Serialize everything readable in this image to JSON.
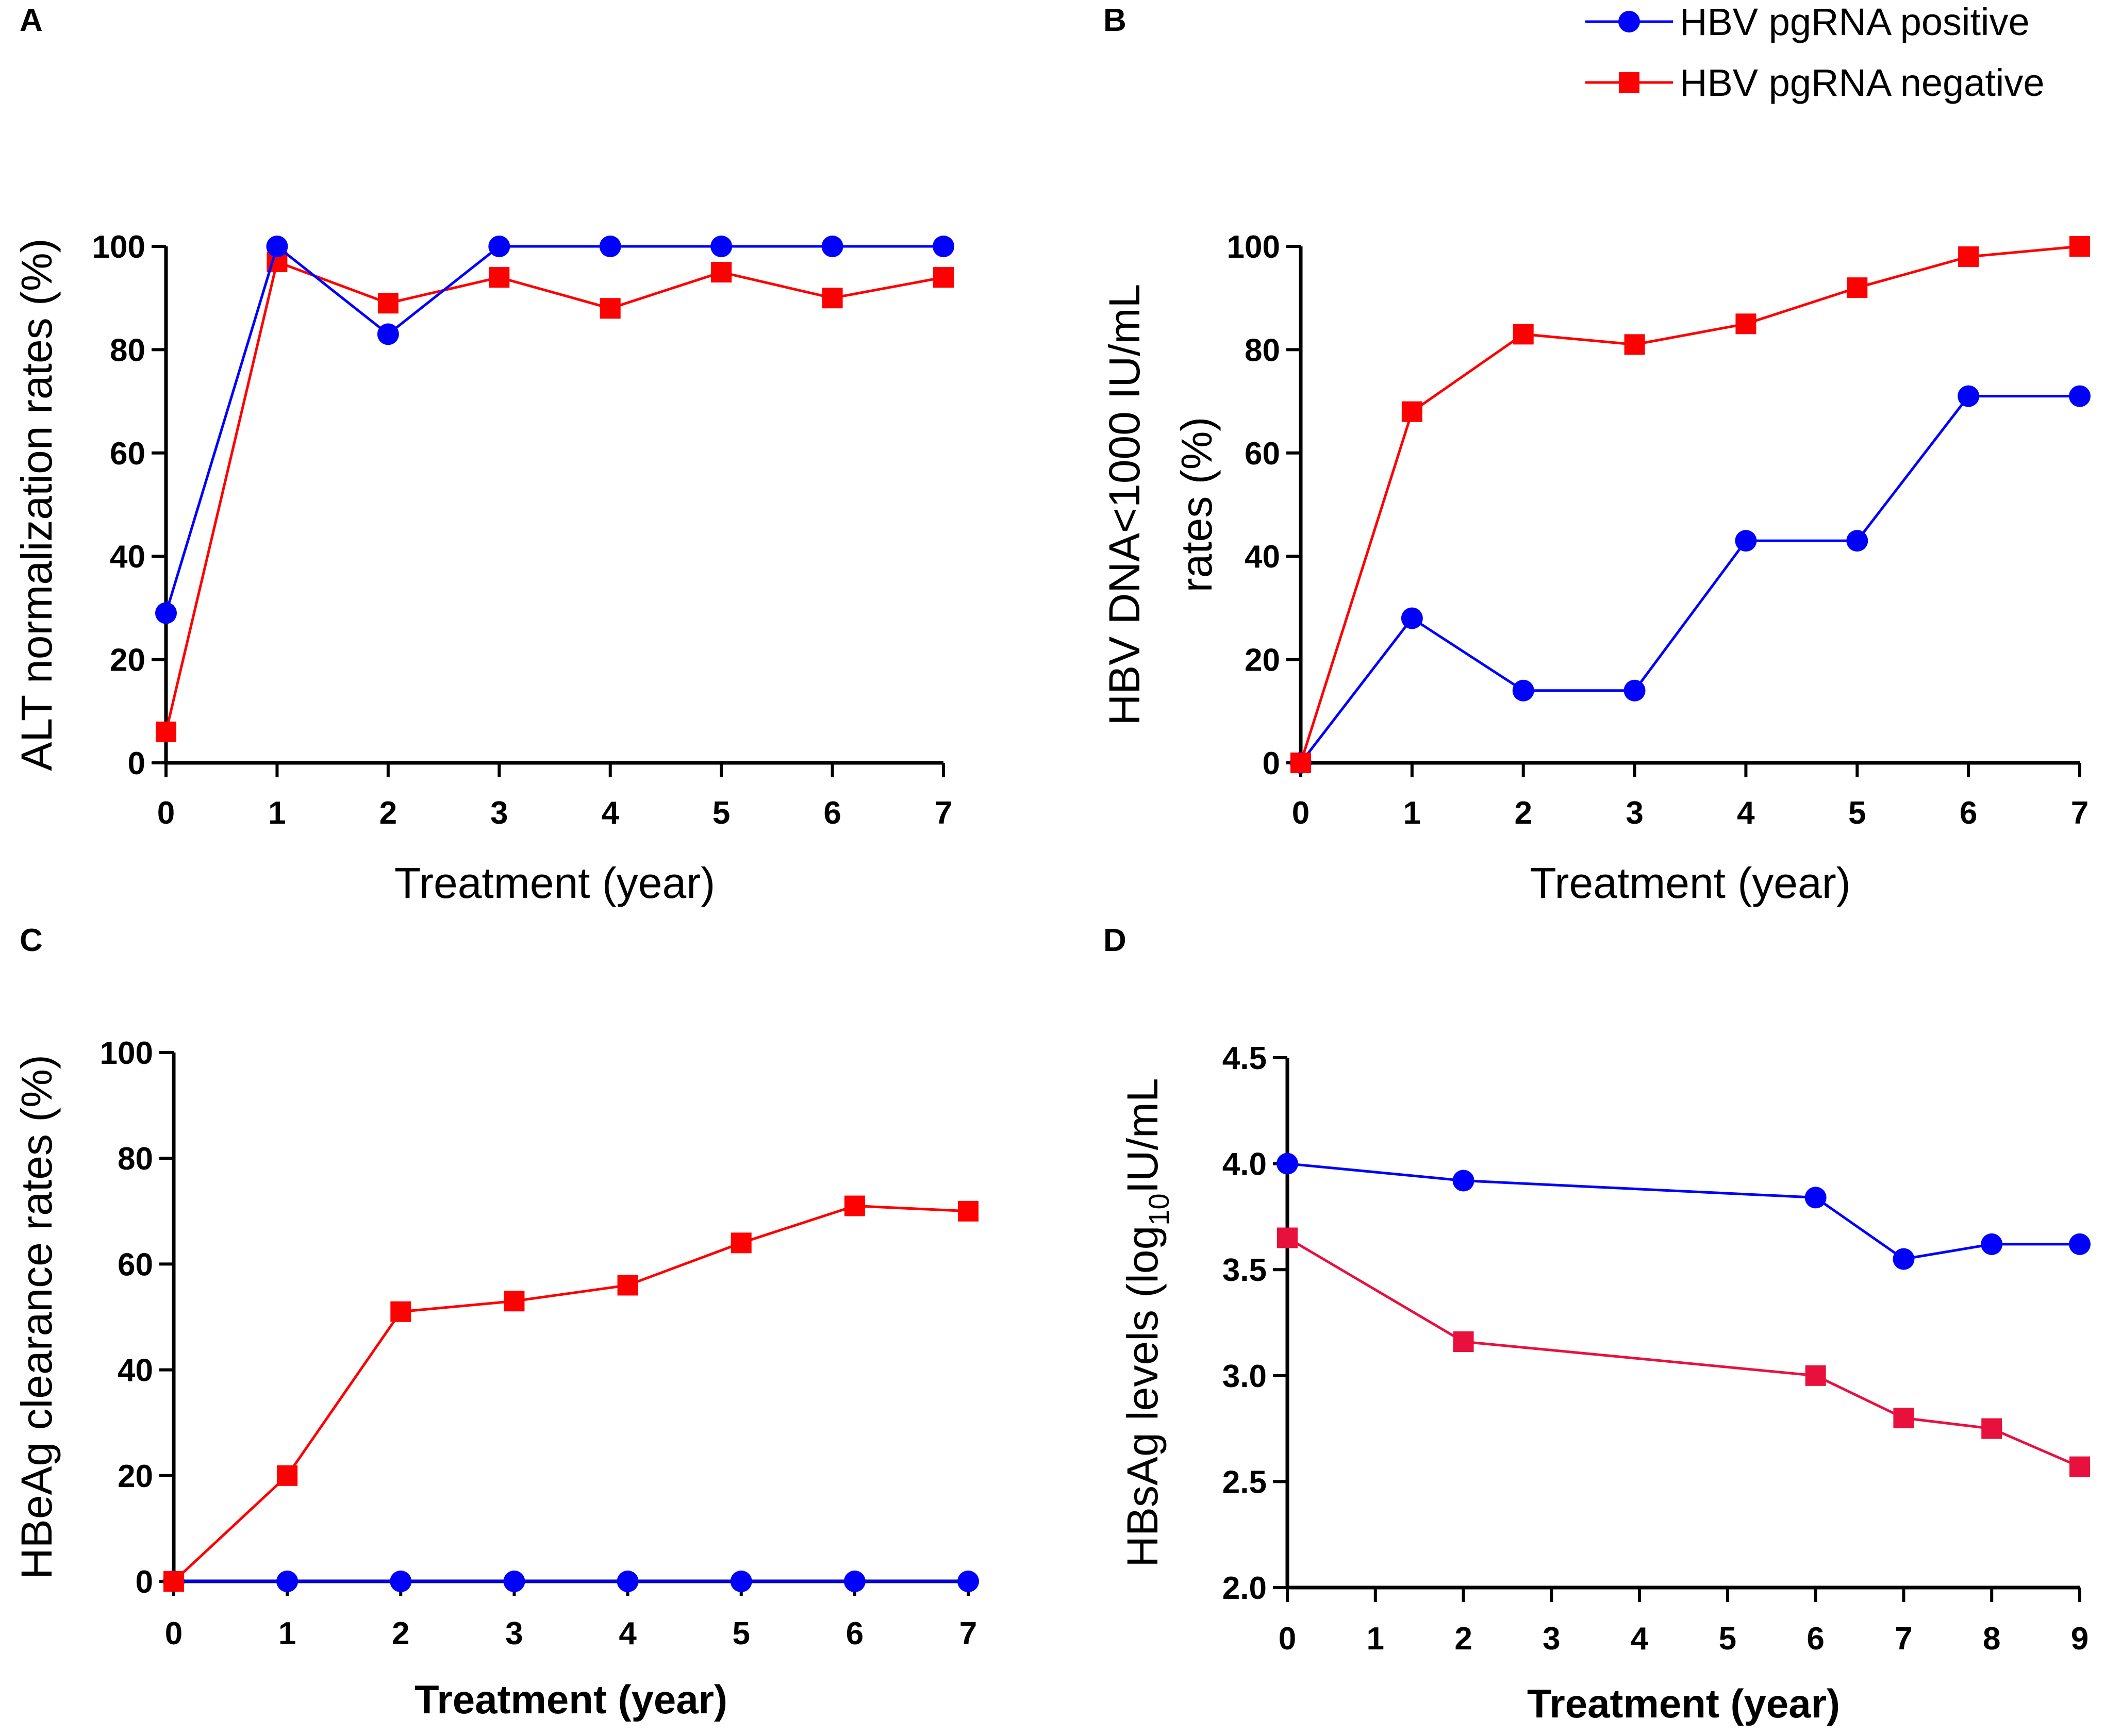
{
  "legend": [
    {
      "label": "HBV pgRNA positive",
      "color": "#0000ff",
      "marker": "circle"
    },
    {
      "label": "HBV pgRNA negative",
      "color": "#ff0000",
      "marker": "square"
    }
  ],
  "chart_data": [
    {
      "panel": "A",
      "type": "line",
      "xlabel": "Treatment (year)",
      "ylabel": "ALT normalization rates (%)",
      "xlim": [
        0,
        7
      ],
      "ylim": [
        0,
        100
      ],
      "xticks": [
        0,
        1,
        2,
        3,
        4,
        5,
        6,
        7
      ],
      "yticks": [
        0,
        20,
        40,
        60,
        80,
        100
      ],
      "series": [
        {
          "name": "HBV pgRNA positive",
          "color": "#0000ff",
          "marker": "circle",
          "x": [
            0,
            1,
            2,
            3,
            4,
            5,
            6,
            7
          ],
          "values": [
            29,
            100,
            83,
            100,
            100,
            100,
            100,
            100
          ]
        },
        {
          "name": "HBV pgRNA negative",
          "color": "#ff0000",
          "marker": "square",
          "x": [
            0,
            1,
            2,
            3,
            4,
            5,
            6,
            7
          ],
          "values": [
            6,
            97,
            89,
            94,
            88,
            95,
            90,
            94
          ]
        }
      ]
    },
    {
      "panel": "B",
      "type": "line",
      "xlabel": "Treatment (year)",
      "ylabel": [
        "HBV DNA<1000 IU/mL",
        "rates (%)"
      ],
      "xlim": [
        0,
        7
      ],
      "ylim": [
        0,
        100
      ],
      "xticks": [
        0,
        1,
        2,
        3,
        4,
        5,
        6,
        7
      ],
      "yticks": [
        0,
        20,
        40,
        60,
        80,
        100
      ],
      "series": [
        {
          "name": "HBV pgRNA positive",
          "color": "#0000ff",
          "marker": "circle",
          "x": [
            0,
            1,
            2,
            3,
            4,
            5,
            6,
            7
          ],
          "values": [
            0,
            28,
            14,
            14,
            43,
            43,
            71,
            71
          ]
        },
        {
          "name": "HBV pgRNA negative",
          "color": "#ff0000",
          "marker": "square",
          "x": [
            0,
            1,
            2,
            3,
            4,
            5,
            6,
            7
          ],
          "values": [
            0,
            68,
            83,
            81,
            85,
            92,
            98,
            100
          ]
        }
      ]
    },
    {
      "panel": "C",
      "type": "line",
      "xlabel": "Treatment (year)",
      "ylabel": "HBeAg clearance rates (%)",
      "xlim": [
        0,
        7
      ],
      "ylim": [
        0,
        100
      ],
      "xticks": [
        0,
        1,
        2,
        3,
        4,
        5,
        6,
        7
      ],
      "yticks": [
        0,
        20,
        40,
        60,
        80,
        100
      ],
      "series": [
        {
          "name": "HBV pgRNA positive",
          "color": "#0000ff",
          "marker": "circle",
          "x": [
            0,
            1,
            2,
            3,
            4,
            5,
            6,
            7
          ],
          "values": [
            0,
            0,
            0,
            0,
            0,
            0,
            0,
            0
          ]
        },
        {
          "name": "HBV pgRNA negative",
          "color": "#ff0000",
          "marker": "square",
          "x": [
            0,
            1,
            2,
            3,
            4,
            5,
            6,
            7
          ],
          "values": [
            0,
            20,
            51,
            53,
            56,
            64,
            71,
            70
          ]
        }
      ]
    },
    {
      "panel": "D",
      "type": "line",
      "xlabel": "Treatment (year)",
      "ylabel": {
        "prefix": "HBsAg levels (log",
        "sub": "10",
        "suffix": "IU/mL"
      },
      "xlim": [
        0,
        9
      ],
      "ylim": [
        2.0,
        4.5
      ],
      "xticks": [
        0,
        1,
        2,
        3,
        4,
        5,
        6,
        7,
        8,
        9
      ],
      "yticks": [
        "2.0",
        "2.5",
        "3.0",
        "3.5",
        "4.0",
        "4.5"
      ],
      "series": [
        {
          "name": "HBV pgRNA positive",
          "color": "#0000ff",
          "marker": "circle",
          "x": [
            0,
            2,
            6,
            7,
            8,
            9
          ],
          "values": [
            4.0,
            3.92,
            3.84,
            3.55,
            3.62,
            3.62
          ]
        },
        {
          "name": "HBV pgRNA negative",
          "color": "#e8113e",
          "marker": "square",
          "x": [
            0,
            2,
            6,
            7,
            8,
            9
          ],
          "values": [
            3.65,
            3.16,
            3.0,
            2.8,
            2.75,
            2.57
          ]
        }
      ]
    }
  ]
}
